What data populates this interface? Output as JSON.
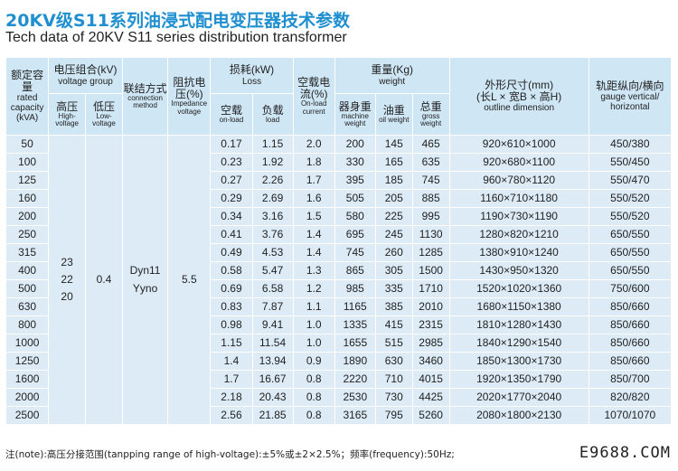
{
  "title_cn": "20KV级S11系列油浸式配电变压器技术参数",
  "title_en": "Tech data of 20KV S11 series distribution transformer",
  "headers": {
    "capacity": {
      "cn": "额定容量",
      "en": "rated capacity (kVA)"
    },
    "voltage_group": {
      "cn": "电压组合(kV)",
      "en": "voltage group"
    },
    "high_voltage": {
      "cn": "高压",
      "en": "High-voltage"
    },
    "low_voltage": {
      "cn": "低压",
      "en": "Low-voltage"
    },
    "connection": {
      "cn": "联结方式",
      "en": "connection method"
    },
    "impedance": {
      "cn": "阻抗电压(%)",
      "en": "Impedance voltage"
    },
    "loss": {
      "cn": "损耗(kW)",
      "en": "Loss"
    },
    "on_load": {
      "cn": "空载",
      "en": "on-load"
    },
    "load": {
      "cn": "负载",
      "en": "load"
    },
    "no_load_current": {
      "cn": "空载电流(%)",
      "en": "On-load current"
    },
    "weight": {
      "cn": "重量(Kg)",
      "en": "weight"
    },
    "machine_weight": {
      "cn": "器身重",
      "en": "machine weight"
    },
    "oil_weight": {
      "cn": "油重",
      "en": "oil weight"
    },
    "gross_weight": {
      "cn": "总重",
      "en": "gross weight"
    },
    "outline": {
      "cn": "外形尺寸(mm)",
      "cn2": "(长L × 宽B × 高H)",
      "en": "outline dimension"
    },
    "gauge": {
      "cn": "轨距纵向/横向",
      "en": "gauge vertical/ horizontal"
    }
  },
  "merged": {
    "high_voltage": "23 22 20",
    "low_voltage": "0.4",
    "connection": "Dyn11 Yyno",
    "impedance": "5.5"
  },
  "rows": [
    {
      "capacity": "50",
      "on_load": "0.17",
      "load": "1.15",
      "current": "2.0",
      "machine": "200",
      "oil": "145",
      "gross": "465",
      "outline": "920×610×1000",
      "gauge": "450/380"
    },
    {
      "capacity": "100",
      "on_load": "0.23",
      "load": "1.92",
      "current": "1.8",
      "machine": "330",
      "oil": "165",
      "gross": "635",
      "outline": "920×680×1100",
      "gauge": "550/450"
    },
    {
      "capacity": "125",
      "on_load": "0.27",
      "load": "2.26",
      "current": "1.7",
      "machine": "395",
      "oil": "185",
      "gross": "745",
      "outline": "960×780×1120",
      "gauge": "550/470"
    },
    {
      "capacity": "160",
      "on_load": "0.29",
      "load": "2.69",
      "current": "1.6",
      "machine": "505",
      "oil": "205",
      "gross": "885",
      "outline": "1160×710×1180",
      "gauge": "550/520"
    },
    {
      "capacity": "200",
      "on_load": "0.34",
      "load": "3.16",
      "current": "1.5",
      "machine": "580",
      "oil": "225",
      "gross": "995",
      "outline": "1190×730×1190",
      "gauge": "550/520"
    },
    {
      "capacity": "250",
      "on_load": "0.41",
      "load": "3.76",
      "current": "1.4",
      "machine": "695",
      "oil": "245",
      "gross": "1130",
      "outline": "1280×820×1210",
      "gauge": "650/550"
    },
    {
      "capacity": "315",
      "on_load": "0.49",
      "load": "4.53",
      "current": "1.4",
      "machine": "745",
      "oil": "260",
      "gross": "1285",
      "outline": "1380×910×1240",
      "gauge": "650/550"
    },
    {
      "capacity": "400",
      "on_load": "0.58",
      "load": "5.47",
      "current": "1.3",
      "machine": "865",
      "oil": "305",
      "gross": "1500",
      "outline": "1430×950×1320",
      "gauge": "650/550"
    },
    {
      "capacity": "500",
      "on_load": "0.69",
      "load": "6.58",
      "current": "1.2",
      "machine": "985",
      "oil": "335",
      "gross": "1710",
      "outline": "1520×1020×1360",
      "gauge": "750/600"
    },
    {
      "capacity": "630",
      "on_load": "0.83",
      "load": "7.87",
      "current": "1.1",
      "machine": "1165",
      "oil": "385",
      "gross": "2010",
      "outline": "1680×1150×1380",
      "gauge": "850/660"
    },
    {
      "capacity": "800",
      "on_load": "0.98",
      "load": "9.41",
      "current": "1.0",
      "machine": "1335",
      "oil": "415",
      "gross": "2315",
      "outline": "1810×1280×1430",
      "gauge": "850/660"
    },
    {
      "capacity": "1000",
      "on_load": "1.15",
      "load": "11.54",
      "current": "1.0",
      "machine": "1655",
      "oil": "515",
      "gross": "2985",
      "outline": "1840×1290×1540",
      "gauge": "850/660"
    },
    {
      "capacity": "1250",
      "on_load": "1.4",
      "load": "13.94",
      "current": "0.9",
      "machine": "1890",
      "oil": "630",
      "gross": "3460",
      "outline": "1850×1300×1730",
      "gauge": "850/660"
    },
    {
      "capacity": "1600",
      "on_load": "1.7",
      "load": "16.67",
      "current": "0.8",
      "machine": "2220",
      "oil": "710",
      "gross": "4015",
      "outline": "1920×1350×1790",
      "gauge": "850/700"
    },
    {
      "capacity": "2000",
      "on_load": "2.18",
      "load": "20.43",
      "current": "0.8",
      "machine": "2530",
      "oil": "730",
      "gross": "4425",
      "outline": "2020×1770×2040",
      "gauge": "820/820"
    },
    {
      "capacity": "2500",
      "on_load": "2.56",
      "load": "21.85",
      "current": "0.8",
      "machine": "3165",
      "oil": "795",
      "gross": "5260",
      "outline": "2080×1800×2130",
      "gauge": "1070/1070"
    }
  ],
  "footnote": "注(note):高压分接范围(tanpping range of high-voltage):±5%或±2×2.5%；频率(frequency):50Hz;",
  "watermark": "E9688.COM"
}
